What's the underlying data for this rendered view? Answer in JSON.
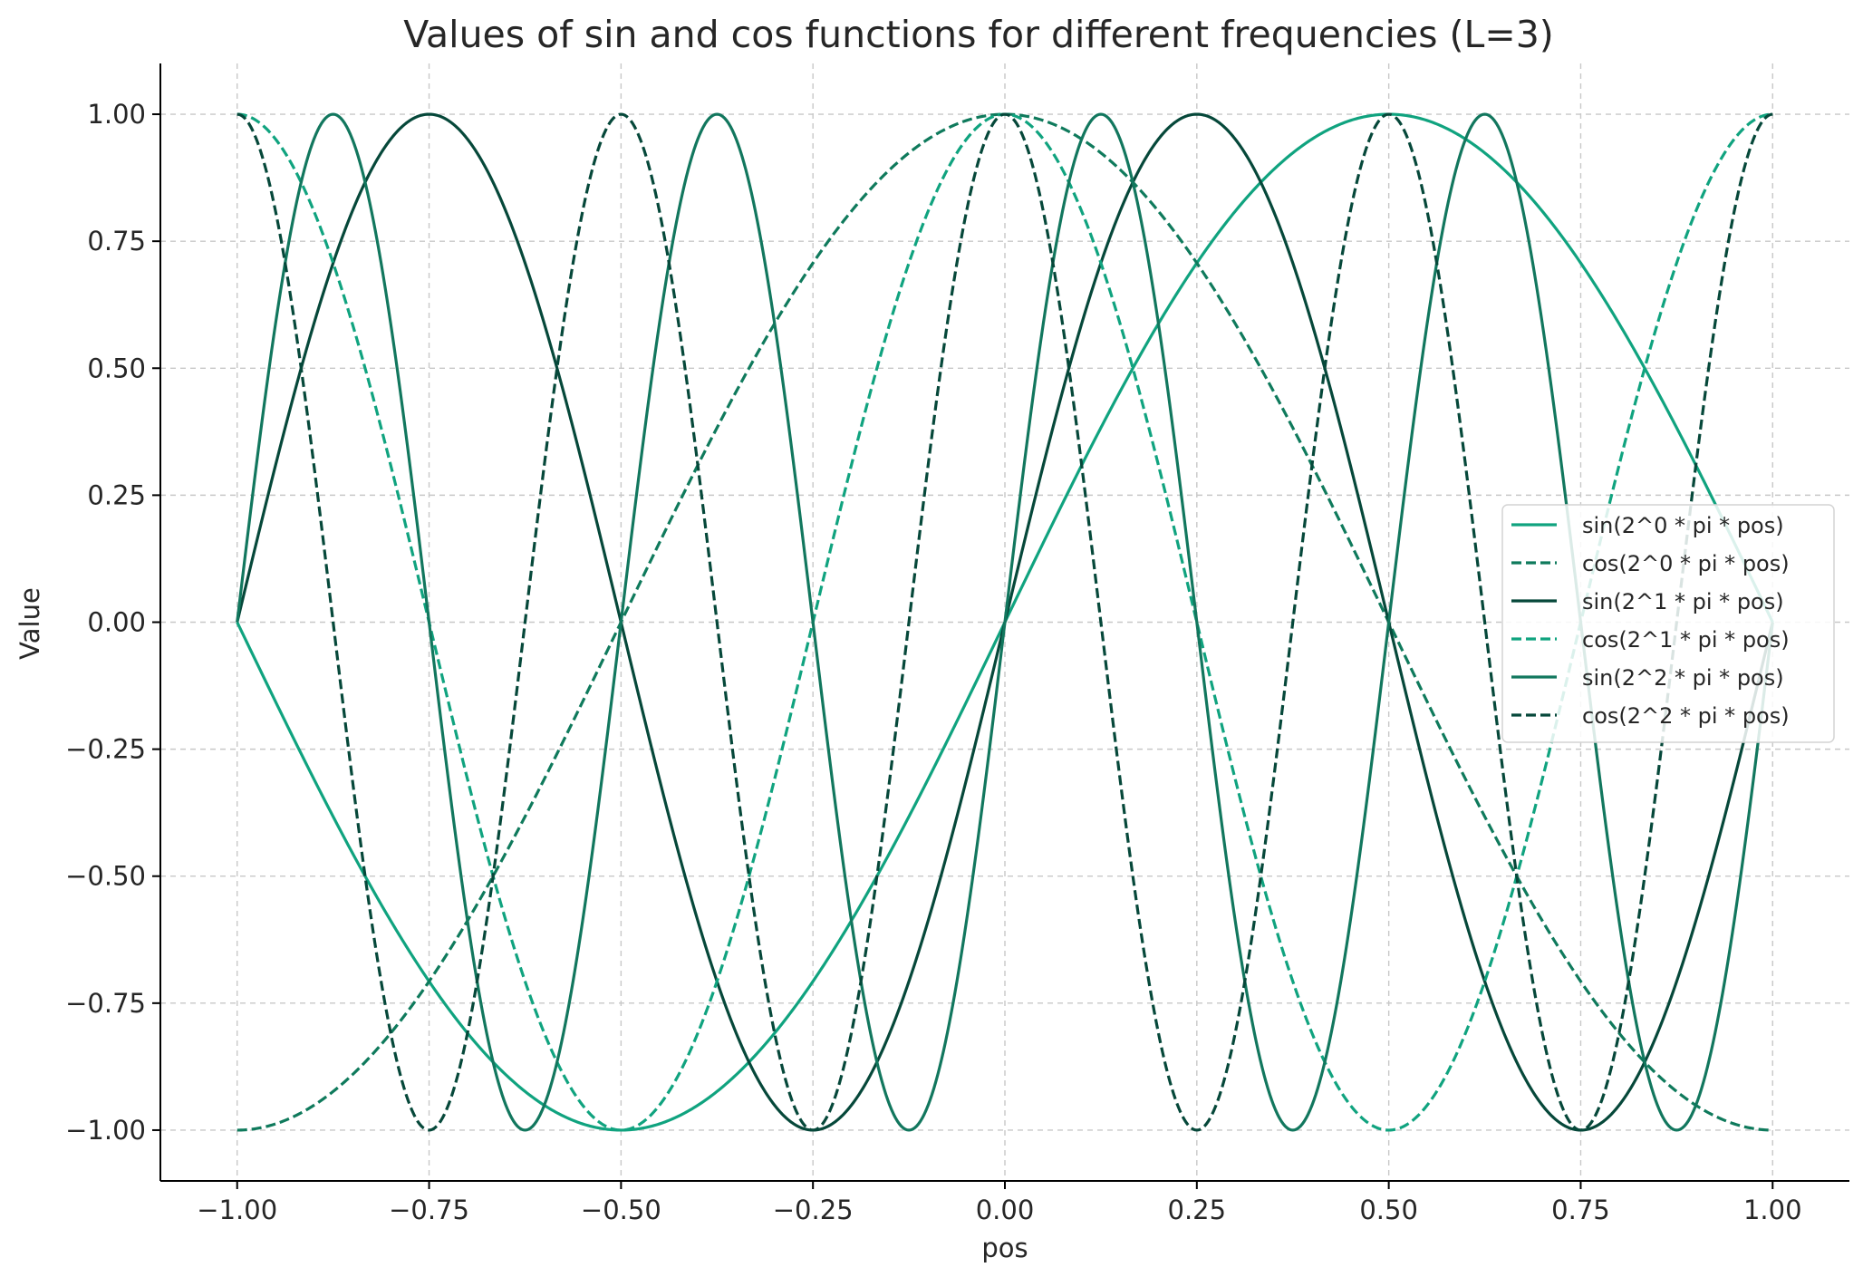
{
  "chart_data": {
    "type": "line",
    "title": "Values of sin and cos functions for different frequencies (L=3)",
    "xlabel": "pos",
    "ylabel": "Value",
    "xlim": [
      -1.1,
      1.1
    ],
    "ylim": [
      -1.1,
      1.1
    ],
    "xticks": [
      -1.0,
      -0.75,
      -0.5,
      -0.25,
      0.0,
      0.25,
      0.5,
      0.75,
      1.0
    ],
    "xtick_labels": [
      "−1.00",
      "−0.75",
      "−0.50",
      "−0.25",
      "0.00",
      "0.25",
      "0.50",
      "0.75",
      "1.00"
    ],
    "yticks": [
      -1.0,
      -0.75,
      -0.5,
      -0.25,
      0.0,
      0.25,
      0.5,
      0.75,
      1.0
    ],
    "ytick_labels": [
      "−1.00",
      "−0.75",
      "−0.50",
      "−0.25",
      "0.00",
      "0.25",
      "0.50",
      "0.75",
      "1.00"
    ],
    "grid": true,
    "legend_position": "center-right",
    "x": [
      -1.0,
      -0.875,
      -0.75,
      -0.625,
      -0.5,
      -0.375,
      -0.25,
      -0.125,
      0.0,
      0.125,
      0.25,
      0.375,
      0.5,
      0.625,
      0.75,
      0.875,
      1.0
    ],
    "series": [
      {
        "name": "sin(2^0 * pi * pos)",
        "func": "sin",
        "freq": 1,
        "style": "solid",
        "color": "#10a37f",
        "values": [
          0.0,
          -0.383,
          -0.707,
          -0.924,
          -1.0,
          -0.924,
          -0.707,
          -0.383,
          0.0,
          0.383,
          0.707,
          0.924,
          1.0,
          0.924,
          0.707,
          0.383,
          0.0
        ]
      },
      {
        "name": "cos(2^0 * pi * pos)",
        "func": "cos",
        "freq": 1,
        "style": "dashed",
        "color": "#0f7a5c",
        "values": [
          -1.0,
          -0.924,
          -0.707,
          -0.383,
          0.0,
          0.383,
          0.707,
          0.924,
          1.0,
          0.924,
          0.707,
          0.383,
          0.0,
          -0.383,
          -0.707,
          -0.924,
          -1.0
        ]
      },
      {
        "name": "sin(2^1 * pi * pos)",
        "func": "sin",
        "freq": 2,
        "style": "solid",
        "color": "#06483a",
        "values": [
          0.0,
          0.707,
          1.0,
          0.707,
          0.0,
          -0.707,
          -1.0,
          -0.707,
          0.0,
          0.707,
          1.0,
          0.707,
          0.0,
          -0.707,
          -1.0,
          -0.707,
          0.0
        ]
      },
      {
        "name": "cos(2^1 * pi * pos)",
        "func": "cos",
        "freq": 2,
        "style": "dashed",
        "color": "#10a37f",
        "values": [
          1.0,
          0.707,
          0.0,
          -0.707,
          -1.0,
          -0.707,
          0.0,
          0.707,
          1.0,
          0.707,
          0.0,
          -0.707,
          -1.0,
          -0.707,
          0.0,
          0.707,
          1.0
        ]
      },
      {
        "name": "sin(2^2 * pi * pos)",
        "func": "sin",
        "freq": 4,
        "style": "solid",
        "color": "#12775e",
        "values": [
          0.0,
          1.0,
          0.0,
          -1.0,
          0.0,
          1.0,
          0.0,
          -1.0,
          0.0,
          1.0,
          0.0,
          -1.0,
          0.0,
          1.0,
          0.0,
          -1.0,
          0.0
        ]
      },
      {
        "name": "cos(2^2 * pi * pos)",
        "func": "cos",
        "freq": 4,
        "style": "dashed",
        "color": "#06483a",
        "values": [
          1.0,
          0.0,
          -1.0,
          0.0,
          1.0,
          0.0,
          -1.0,
          0.0,
          1.0,
          0.0,
          -1.0,
          0.0,
          1.0,
          0.0,
          -1.0,
          0.0,
          1.0
        ]
      }
    ]
  }
}
